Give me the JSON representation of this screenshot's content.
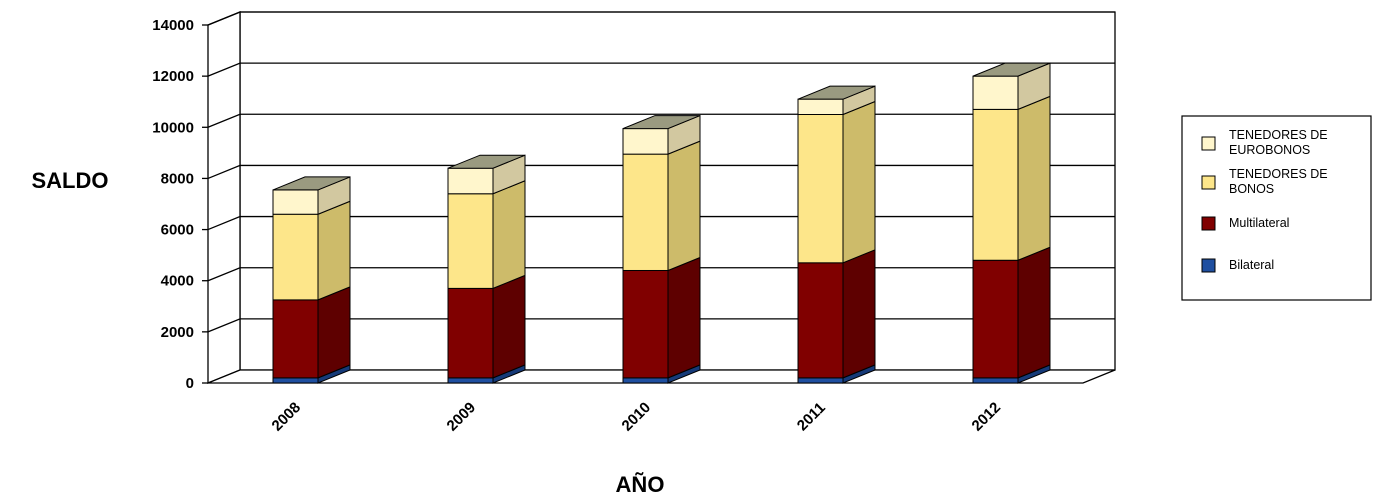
{
  "chart_data": {
    "type": "bar",
    "stacked": true,
    "three_d": true,
    "categories": [
      "2008",
      "2009",
      "2010",
      "2011",
      "2012"
    ],
    "series": [
      {
        "name": "Bilateral",
        "values": [
          200,
          200,
          200,
          200,
          200
        ],
        "color": "#1f4fa0",
        "side_color": "#163a78",
        "top_color": "#2a5cb0"
      },
      {
        "name": "Multilateral",
        "values": [
          3050,
          3500,
          4200,
          4500,
          4600
        ],
        "color": "#800000",
        "side_color": "#5e0000",
        "top_color": "#993333"
      },
      {
        "name": "TENEDORES DE BONOS",
        "values": [
          3350,
          3700,
          4550,
          5800,
          5900
        ],
        "color": "#fde68a",
        "side_color": "#cdbb6a",
        "top_color": "#fdf0b0"
      },
      {
        "name": "TENEDORES DE EUROBONOS",
        "values": [
          950,
          1000,
          1000,
          600,
          1300
        ],
        "color": "#fff6cc",
        "side_color": "#d2c8a0",
        "top_color": "#9a9a80"
      }
    ],
    "legend_order": [
      "TENEDORES DE EUROBONOS",
      "TENEDORES DE BONOS",
      "Multilateral",
      "Bilateral"
    ],
    "xlabel": "AÑO",
    "ylabel": "SALDO",
    "ylim": [
      0,
      14000
    ],
    "yticks": [
      "0",
      "2000",
      "4000",
      "6000",
      "8000",
      "10000",
      "12000",
      "14000"
    ],
    "grid": true,
    "legend_position": "right"
  }
}
